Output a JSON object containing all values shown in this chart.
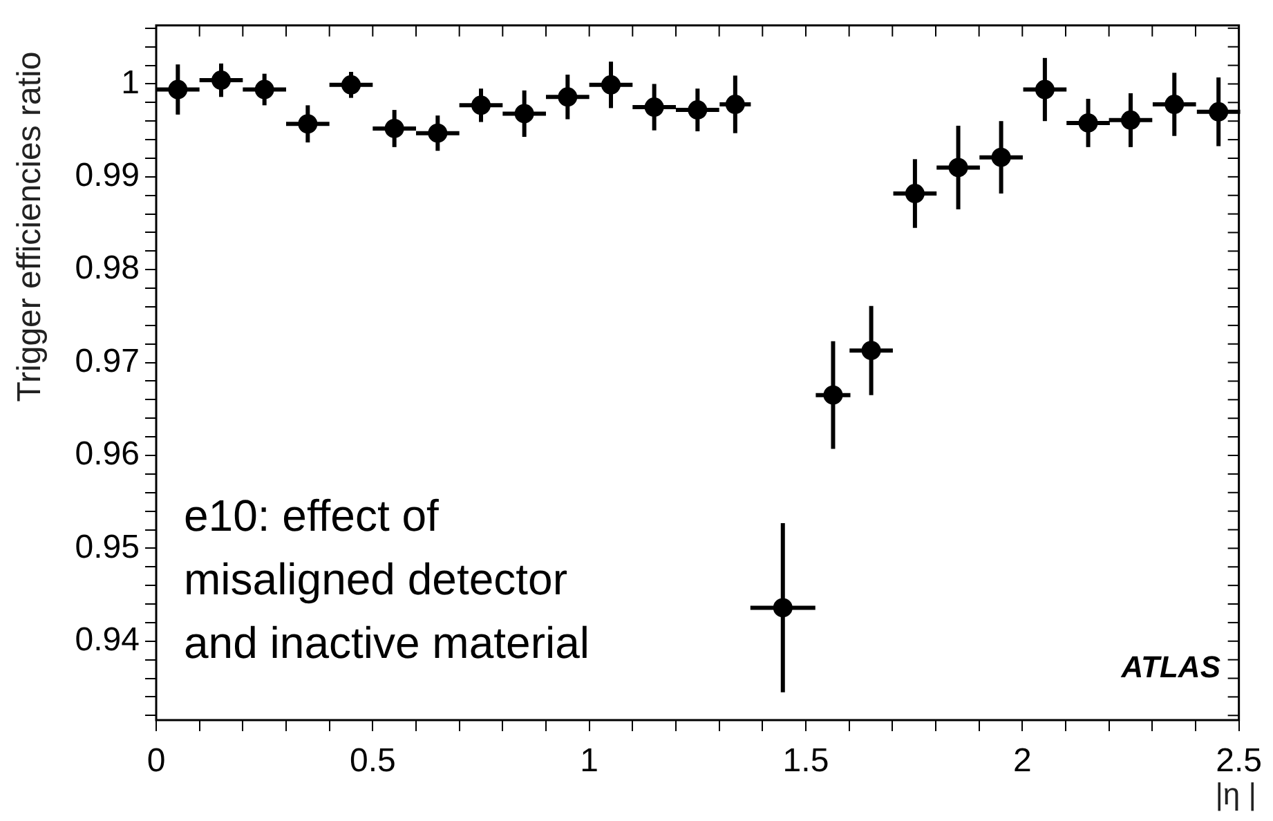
{
  "chart_data": {
    "type": "scatter",
    "xlabel": "|η |",
    "ylabel": "Trigger efficiencies ratio",
    "annotations": [
      "e10: effect of misaligned detector and inactive material",
      "ATLAS"
    ],
    "x": [
      0.05,
      0.15,
      0.25,
      0.35,
      0.45,
      0.55,
      0.65,
      0.75,
      0.85,
      0.95,
      1.05,
      1.15,
      1.25,
      1.337,
      1.447,
      1.563,
      1.651,
      1.752,
      1.852,
      1.951,
      2.052,
      2.152,
      2.25,
      2.351,
      2.453
    ],
    "series": [
      {
        "color": "#000000",
        "values": [
          0.9994,
          1.0004,
          0.9994,
          0.9957,
          0.9999,
          0.9952,
          0.9947,
          0.9977,
          0.9968,
          0.9986,
          0.9999,
          0.9975,
          0.9972,
          0.9978,
          0.9436,
          0.9665,
          0.9713,
          0.9882,
          0.991,
          0.9921,
          0.9994,
          0.9958,
          0.9961,
          0.9978,
          0.997
        ],
        "errors": [
          0.0027,
          0.0018,
          0.0017,
          0.002,
          0.0014,
          0.002,
          0.0019,
          0.0018,
          0.0025,
          0.0024,
          0.0025,
          0.0025,
          0.0023,
          0.0031,
          0.0091,
          0.0058,
          0.0048,
          0.0037,
          0.0045,
          0.0039,
          0.0034,
          0.0026,
          0.0029,
          0.0034,
          0.0037
        ],
        "xerrors": [
          0.05,
          0.05,
          0.05,
          0.05,
          0.05,
          0.05,
          0.05,
          0.05,
          0.05,
          0.05,
          0.05,
          0.05,
          0.05,
          0.036,
          0.075,
          0.04,
          0.05,
          0.05,
          0.05,
          0.05,
          0.05,
          0.05,
          0.05,
          0.05,
          0.05
        ]
      }
    ],
    "marker": "circle",
    "xlim": [
      0,
      2.5
    ],
    "xticks": [
      0,
      {
        "value": 0.1,
        "label": null
      },
      {
        "value": 0.2,
        "label": null
      },
      {
        "value": 0.3,
        "label": null
      },
      {
        "value": 0.4,
        "label": null
      },
      0.5,
      {
        "value": 0.6,
        "label": null
      },
      {
        "value": 0.7,
        "label": null
      },
      {
        "value": 0.8,
        "label": null
      },
      {
        "value": 0.9,
        "label": null
      },
      1,
      {
        "value": 1.1,
        "label": null
      },
      {
        "value": 1.2,
        "label": null
      },
      {
        "value": 1.3,
        "label": null
      },
      {
        "value": 1.4,
        "label": null
      },
      1.5,
      {
        "value": 1.6,
        "label": null
      },
      {
        "value": 1.7,
        "label": null
      },
      {
        "value": 1.8,
        "label": null
      },
      {
        "value": 1.9,
        "label": null
      },
      2,
      {
        "value": 2.1,
        "label": null
      },
      {
        "value": 2.2,
        "label": null
      },
      {
        "value": 2.3,
        "label": null
      },
      {
        "value": 2.4,
        "label": null
      },
      2.5
    ],
    "ylim": [
      0.9315,
      1.0063
    ],
    "yticks": [
      {
        "value": 0.932,
        "label": null
      },
      {
        "value": 0.934,
        "label": null
      },
      {
        "value": 0.936,
        "label": null
      },
      {
        "value": 0.938,
        "label": null
      },
      0.94,
      {
        "value": 0.942,
        "label": null
      },
      {
        "value": 0.944,
        "label": null
      },
      {
        "value": 0.946,
        "label": null
      },
      {
        "value": 0.948,
        "label": null
      },
      0.95,
      {
        "value": 0.952,
        "label": null
      },
      {
        "value": 0.954,
        "label": null
      },
      {
        "value": 0.956,
        "label": null
      },
      {
        "value": 0.958,
        "label": null
      },
      0.96,
      {
        "value": 0.962,
        "label": null
      },
      {
        "value": 0.964,
        "label": null
      },
      {
        "value": 0.966,
        "label": null
      },
      {
        "value": 0.968,
        "label": null
      },
      0.97,
      {
        "value": 0.972,
        "label": null
      },
      {
        "value": 0.974,
        "label": null
      },
      {
        "value": 0.976,
        "label": null
      },
      {
        "value": 0.978,
        "label": null
      },
      0.98,
      {
        "value": 0.982,
        "label": null
      },
      {
        "value": 0.984,
        "label": null
      },
      {
        "value": 0.986,
        "label": null
      },
      {
        "value": 0.988,
        "label": null
      },
      0.99,
      {
        "value": 0.992,
        "label": null
      },
      {
        "value": 0.994,
        "label": null
      },
      {
        "value": 0.996,
        "label": null
      },
      {
        "value": 0.998,
        "label": null
      },
      1,
      {
        "value": 1.002,
        "label": null
      },
      {
        "value": 1.004,
        "label": null
      },
      {
        "value": 1.006,
        "label": null
      }
    ]
  }
}
